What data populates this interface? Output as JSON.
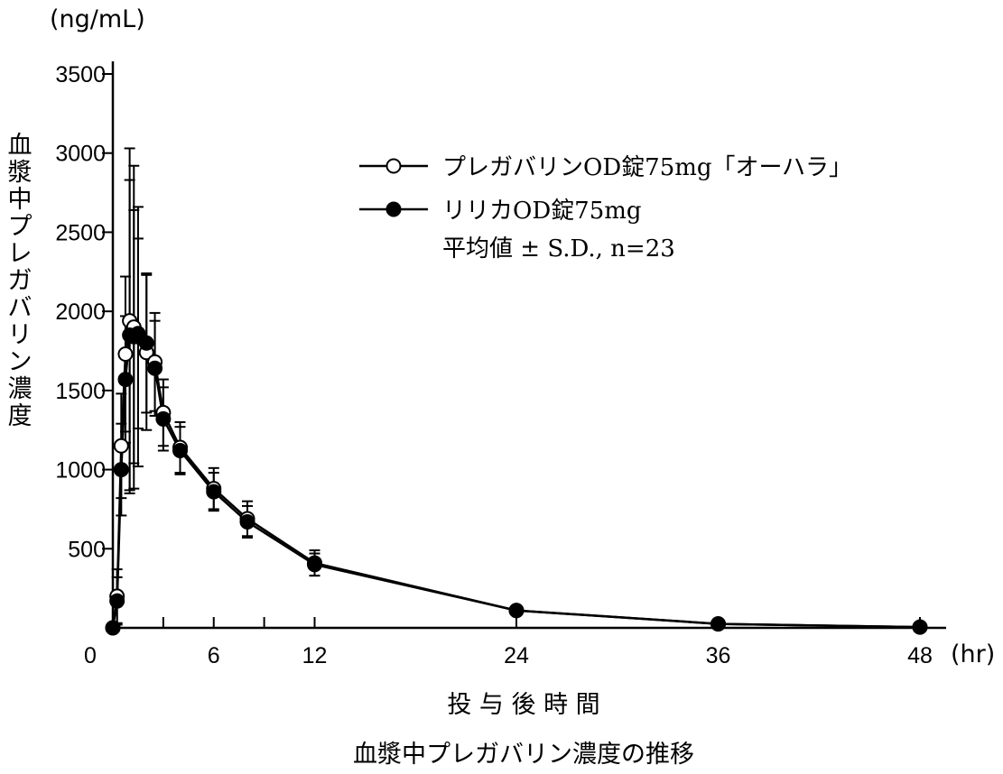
{
  "chart_data": {
    "type": "line",
    "title": "血漿中プレガバリン濃度の推移",
    "xlabel": "投 与 後 時 間",
    "ylabel": "血漿中プレガバリン濃度",
    "x_unit": "(hr)",
    "y_unit": "(ng/mL)",
    "xlim": [
      0,
      48
    ],
    "ylim": [
      0,
      3500
    ],
    "x_ticks": [
      0,
      6,
      12,
      24,
      36,
      48
    ],
    "x_tick_labels": [
      "0",
      "6",
      "12",
      "24",
      "36",
      "48"
    ],
    "x_minor_ticks": [
      3,
      9
    ],
    "y_ticks": [
      500,
      1000,
      1500,
      2000,
      2500,
      3000,
      3500
    ],
    "y_tick_labels": [
      "500",
      "1000",
      "1500",
      "2000",
      "2500",
      "3000",
      "3500"
    ],
    "grid": false,
    "legend_position": "top-right",
    "legend_note": "平均値 ± S.D., n=23",
    "series": [
      {
        "name": "プレガバリンOD錠75mg「オーハラ」",
        "marker": "open-circle",
        "color": "#000000",
        "x": [
          0,
          0.25,
          0.5,
          0.75,
          1,
          1.25,
          1.5,
          2,
          2.5,
          3,
          4,
          6,
          8,
          12,
          24,
          36,
          48
        ],
        "y": [
          0,
          200,
          1150,
          1730,
          1940,
          1900,
          1840,
          1740,
          1680,
          1360,
          1140,
          880,
          690,
          410,
          110,
          25,
          5
        ],
        "sd": [
          0,
          170,
          330,
          490,
          1090,
          1020,
          820,
          490,
          310,
          210,
          160,
          130,
          110,
          80,
          20,
          0,
          0
        ]
      },
      {
        "name": "リリカOD錠75mg",
        "marker": "filled-circle",
        "color": "#000000",
        "x": [
          0,
          0.25,
          0.5,
          0.75,
          1,
          1.25,
          1.5,
          2,
          2.5,
          3,
          4,
          6,
          8,
          12,
          24,
          36,
          48
        ],
        "y": [
          0,
          170,
          1000,
          1570,
          1850,
          1840,
          1860,
          1800,
          1640,
          1320,
          1120,
          860,
          670,
          400,
          110,
          25,
          5
        ],
        "sd": [
          0,
          150,
          290,
          400,
          980,
          800,
          600,
          440,
          300,
          200,
          150,
          120,
          100,
          70,
          20,
          0,
          0
        ]
      }
    ]
  }
}
